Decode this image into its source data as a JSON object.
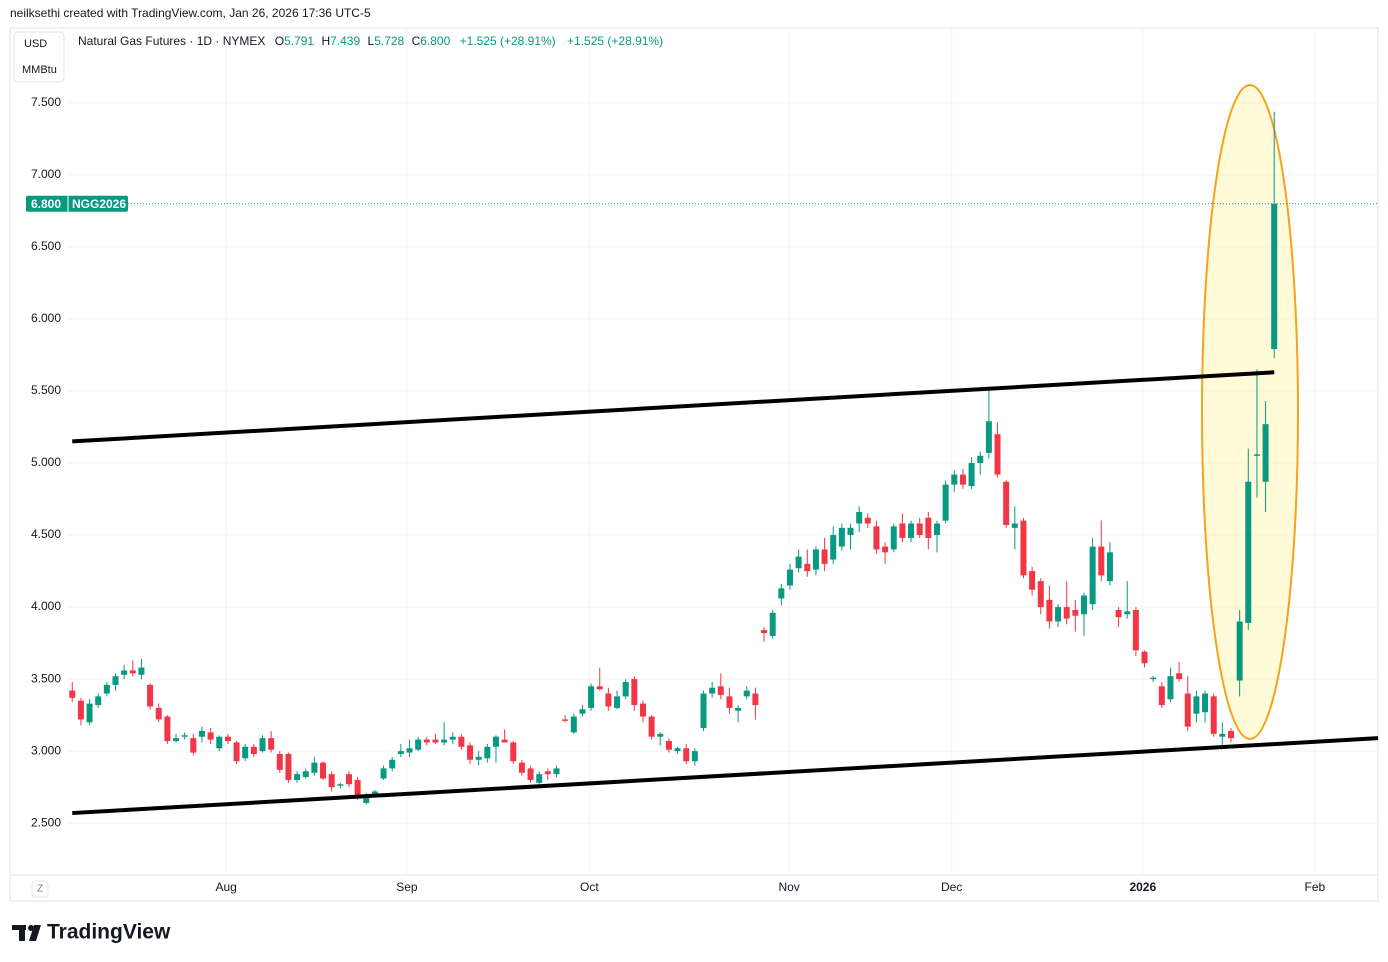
{
  "header": {
    "credit": "neilksethi created with TradingView.com, Jan 26, 2026 17:36 UTC-5",
    "currency": "USD",
    "unit": "MMBtu",
    "reset_button": "Z",
    "brand": "TradingView"
  },
  "chart_data": {
    "type": "candlestick",
    "title": "Natural Gas Futures · 1D · NYMEX",
    "ohlc_legend": {
      "o_label": "O",
      "o": "5.791",
      "h_label": "H",
      "h": "7.439",
      "l_label": "L",
      "l": "5.728",
      "c_label": "C",
      "c": "6.800",
      "change": "+1.525 (+28.91%)"
    },
    "last_price_label": "6.800",
    "contract": "NGG2026",
    "up_color": "#089981",
    "down_color": "#f23645",
    "open": [
      3.42,
      3.35,
      3.2,
      3.32,
      3.4,
      3.46,
      3.53,
      3.56,
      3.53,
      3.46,
      3.3,
      3.24,
      3.07,
      3.1,
      3.09,
      3.1,
      3.13,
      3.02,
      3.1,
      3.06,
      2.95,
      3.03,
      3.0,
      3.09,
      2.98,
      2.98,
      2.8,
      2.82,
      2.85,
      2.92,
      2.84,
      2.76,
      2.84,
      2.8,
      2.64,
      2.7,
      2.81,
      2.88,
      2.98,
      2.99,
      3.01,
      3.08,
      3.08,
      3.06,
      3.08,
      3.1,
      3.04,
      2.94,
      2.95,
      3.03,
      3.08,
      3.06,
      2.92,
      2.88,
      2.78,
      2.86,
      2.84,
      3.22,
      3.13,
      3.26,
      3.3,
      3.45,
      3.4,
      3.3,
      3.38,
      3.5,
      3.33,
      3.24,
      3.1,
      3.07,
      3.0,
      3.02,
      2.93,
      3.16,
      3.4,
      3.45,
      3.38,
      3.28,
      3.38,
      3.4,
      3.84,
      3.8,
      4.06,
      4.15,
      4.27,
      4.3,
      4.26,
      4.4,
      4.33,
      4.42,
      4.5,
      4.58,
      4.62,
      4.56,
      4.42,
      4.4,
      4.58,
      4.48,
      4.58,
      4.62,
      4.5,
      4.6,
      4.85,
      4.92,
      4.84,
      5.0,
      5.07,
      5.2,
      4.87,
      4.55,
      4.6,
      4.25,
      4.18,
      4.05,
      3.9,
      4.0,
      3.98,
      3.95,
      4.02,
      4.42,
      4.18,
      3.98,
      3.95,
      3.98,
      3.69,
      3.5,
      3.45,
      3.36,
      3.54,
      3.4,
      3.26,
      3.27,
      3.38,
      3.1,
      3.14,
      3.49,
      3.89,
      5.05,
      4.87,
      5.791
    ],
    "high": [
      3.48,
      3.37,
      3.36,
      3.4,
      3.48,
      3.54,
      3.6,
      3.63,
      3.64,
      3.47,
      3.33,
      3.25,
      3.12,
      3.13,
      3.12,
      3.17,
      3.16,
      3.11,
      3.12,
      3.07,
      3.05,
      3.05,
      3.11,
      3.14,
      3.0,
      2.99,
      2.86,
      2.88,
      2.96,
      2.93,
      2.86,
      2.78,
      2.86,
      2.82,
      2.71,
      2.73,
      2.9,
      2.96,
      3.05,
      3.08,
      3.1,
      3.1,
      3.12,
      3.2,
      3.13,
      3.12,
      3.06,
      3.0,
      3.05,
      3.11,
      3.15,
      3.07,
      2.94,
      2.9,
      2.86,
      2.88,
      2.9,
      3.25,
      3.26,
      3.32,
      3.47,
      3.58,
      3.44,
      3.42,
      3.5,
      3.52,
      3.35,
      3.25,
      3.13,
      3.09,
      3.03,
      3.05,
      3.02,
      3.42,
      3.48,
      3.54,
      3.44,
      3.32,
      3.45,
      3.44,
      3.86,
      3.98,
      4.16,
      4.3,
      4.4,
      4.4,
      4.42,
      4.48,
      4.56,
      4.58,
      4.58,
      4.7,
      4.65,
      4.6,
      4.45,
      4.58,
      4.65,
      4.6,
      4.62,
      4.66,
      4.6,
      4.88,
      4.95,
      4.96,
      5.04,
      5.08,
      5.52,
      5.28,
      4.88,
      4.7,
      4.62,
      4.28,
      4.2,
      4.15,
      4.02,
      4.18,
      4.05,
      4.1,
      4.48,
      4.6,
      4.45,
      4.0,
      4.18,
      4.0,
      3.7,
      3.52,
      3.48,
      3.58,
      3.62,
      3.52,
      3.42,
      3.42,
      3.4,
      3.2,
      3.16,
      3.98,
      5.1,
      5.65,
      5.43,
      7.439
    ],
    "low": [
      3.34,
      3.18,
      3.18,
      3.3,
      3.38,
      3.42,
      3.5,
      3.52,
      3.5,
      3.29,
      3.2,
      3.05,
      3.06,
      3.08,
      2.97,
      3.06,
      3.05,
      3.0,
      3.05,
      2.91,
      2.93,
      2.96,
      2.99,
      2.99,
      2.85,
      2.78,
      2.78,
      2.81,
      2.83,
      2.8,
      2.72,
      2.74,
      2.75,
      2.66,
      2.63,
      2.68,
      2.8,
      2.86,
      2.96,
      2.96,
      3.0,
      3.04,
      3.05,
      3.04,
      3.05,
      3.01,
      2.91,
      2.9,
      2.92,
      2.92,
      3.06,
      2.91,
      2.83,
      2.78,
      2.77,
      2.8,
      2.82,
      3.2,
      3.12,
      3.24,
      3.28,
      3.42,
      3.28,
      3.29,
      3.36,
      3.28,
      3.2,
      3.08,
      3.04,
      2.99,
      2.98,
      2.91,
      2.9,
      3.14,
      3.37,
      3.36,
      3.26,
      3.2,
      3.36,
      3.22,
      3.76,
      3.78,
      4.01,
      4.12,
      4.24,
      4.21,
      4.22,
      4.25,
      4.3,
      4.39,
      4.4,
      4.52,
      4.55,
      4.37,
      4.3,
      4.38,
      4.45,
      4.45,
      4.48,
      4.4,
      4.38,
      4.58,
      4.8,
      4.82,
      4.82,
      4.92,
      5.03,
      4.9,
      4.55,
      4.4,
      4.2,
      4.08,
      3.95,
      3.85,
      3.86,
      3.88,
      3.83,
      3.8,
      3.98,
      4.18,
      4.15,
      3.86,
      3.92,
      3.66,
      3.58,
      3.48,
      3.3,
      3.34,
      3.48,
      3.14,
      3.2,
      3.2,
      3.1,
      3.03,
      3.06,
      3.38,
      3.84,
      4.76,
      4.66,
      5.728
    ],
    "close": [
      3.37,
      3.22,
      3.33,
      3.38,
      3.46,
      3.52,
      3.56,
      3.54,
      3.58,
      3.31,
      3.22,
      3.07,
      3.09,
      3.11,
      2.99,
      3.14,
      3.08,
      3.1,
      3.07,
      2.93,
      3.03,
      2.98,
      3.09,
      3.01,
      2.87,
      2.8,
      2.84,
      2.86,
      2.92,
      2.81,
      2.75,
      2.77,
      2.77,
      2.69,
      2.7,
      2.72,
      2.88,
      2.94,
      3.0,
      3.02,
      3.08,
      3.06,
      3.06,
      3.08,
      3.1,
      3.03,
      2.94,
      2.96,
      3.03,
      3.1,
      3.06,
      2.93,
      2.85,
      2.8,
      2.84,
      2.84,
      2.88,
      3.21,
      3.24,
      3.29,
      3.45,
      3.43,
      3.31,
      3.38,
      3.48,
      3.32,
      3.24,
      3.1,
      3.12,
      3.01,
      3.02,
      2.93,
      3.0,
      3.4,
      3.44,
      3.39,
      3.3,
      3.3,
      3.42,
      3.32,
      3.82,
      3.96,
      4.13,
      4.26,
      4.35,
      4.25,
      4.4,
      4.3,
      4.5,
      4.55,
      4.55,
      4.66,
      4.58,
      4.4,
      4.38,
      4.56,
      4.48,
      4.58,
      4.5,
      4.48,
      4.58,
      4.85,
      4.92,
      4.85,
      5.0,
      5.05,
      5.29,
      4.92,
      4.57,
      4.58,
      4.22,
      4.12,
      4.0,
      3.9,
      4.0,
      3.92,
      3.94,
      4.08,
      4.42,
      4.22,
      4.38,
      3.93,
      3.97,
      3.7,
      3.61,
      3.51,
      3.32,
      3.52,
      3.5,
      3.17,
      3.38,
      3.4,
      3.12,
      3.12,
      3.09,
      3.9,
      4.87,
      5.06,
      5.27,
      6.8
    ],
    "xlim": [
      -7.2,
      151
    ],
    "xticks": [
      {
        "value": 17.8,
        "label": "Aug"
      },
      {
        "value": 38.7,
        "label": "Sep"
      },
      {
        "value": 59.8,
        "label": "Oct"
      },
      {
        "value": 82.9,
        "label": "Nov"
      },
      {
        "value": 101.7,
        "label": "Dec"
      },
      {
        "value": 123.8,
        "label": "2026"
      },
      {
        "value": 143.7,
        "label": "Feb"
      }
    ],
    "ylim": [
      2.14,
      8.02
    ],
    "yticks": [
      {
        "value": 2.5,
        "label": "2.500"
      },
      {
        "value": 3,
        "label": "3.000"
      },
      {
        "value": 3.5,
        "label": "3.500"
      },
      {
        "value": 4,
        "label": "4.000"
      },
      {
        "value": 4.5,
        "label": "4.500"
      },
      {
        "value": 5,
        "label": "5.000"
      },
      {
        "value": 5.5,
        "label": "5.500"
      },
      {
        "value": 6,
        "label": "6.000"
      },
      {
        "value": 6.5,
        "label": "6.500"
      },
      {
        "value": 7,
        "label": "7.000"
      },
      {
        "value": 7.5,
        "label": "7.500"
      }
    ],
    "grid": true,
    "trendlines": [
      {
        "x": [
          0,
          139
        ],
        "y": [
          5.15,
          5.63
        ]
      },
      {
        "x": [
          0,
          151
        ],
        "y": [
          2.57,
          3.09
        ]
      }
    ]
  }
}
